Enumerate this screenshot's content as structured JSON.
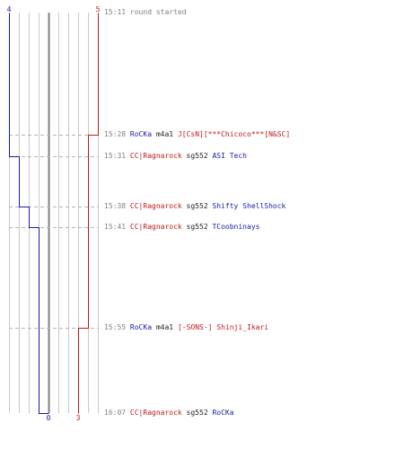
{
  "colors": {
    "blue": "#1a1aa8",
    "red": "#c01818",
    "grid": "#c8c8c8",
    "center": "#808080",
    "dash": "#b4b4b4",
    "time": "#808080"
  },
  "teams": {
    "blue": {
      "start": 4,
      "end": 0
    },
    "red": {
      "start": 5,
      "end": 3
    }
  },
  "events": [
    {
      "time": "15:11",
      "text": "round started",
      "kind": "system"
    },
    {
      "time": "15:28",
      "killer": "RoCKa",
      "killer_team": "blue",
      "weapon": "m4a1",
      "victim": "J[CsN][***Chicoco***[N&SC]",
      "victim_team": "red"
    },
    {
      "time": "15:31",
      "killer": "CC|Ragnarock",
      "killer_team": "red",
      "weapon": "sg552",
      "victim": "ASI Tech",
      "victim_team": "blue"
    },
    {
      "time": "15:38",
      "killer": "CC|Ragnarock",
      "killer_team": "red",
      "weapon": "sg552",
      "victim": "Shifty ShellShock",
      "victim_team": "blue"
    },
    {
      "time": "15:41",
      "killer": "CC|Ragnarock",
      "killer_team": "red",
      "weapon": "sg552",
      "victim": "TCoobninays",
      "victim_team": "blue"
    },
    {
      "time": "15:55",
      "killer": "RoCKa",
      "killer_team": "blue",
      "weapon": "m4a1",
      "victim": "[-SONS-] Shinji_Ikari",
      "victim_team": "red"
    },
    {
      "time": "16:07",
      "killer": "CC|Ragnarock",
      "killer_team": "red",
      "weapon": "sg552",
      "victim": "RoCKa",
      "victim_team": "blue"
    }
  ]
}
